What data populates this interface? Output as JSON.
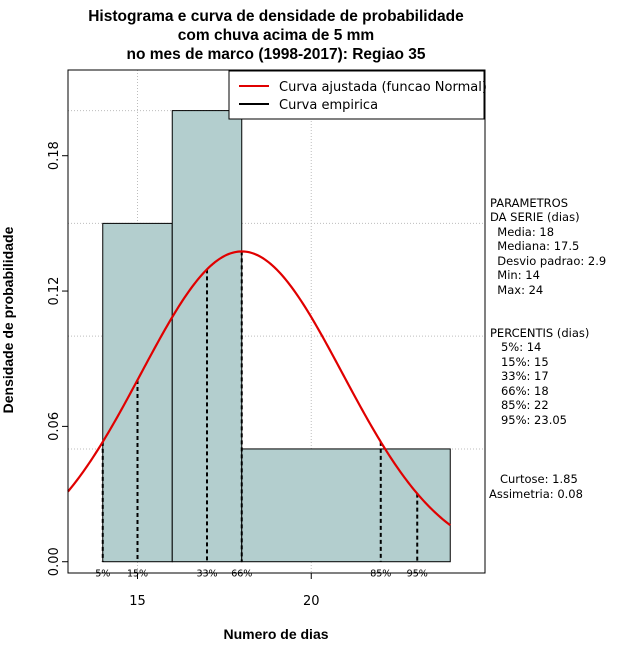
{
  "chart_data": {
    "type": "bar",
    "title_lines": [
      "Histograma e curva de densidade de probabilidade",
      "com chuva acima de 5 mm",
      "no mes de marco (1998-2017): Regiao 35"
    ],
    "xlabel": "Numero de dias",
    "ylabel": "Densidade de probabilidade",
    "xlim": [
      13.0,
      25.0
    ],
    "ylim": [
      -0.005,
      0.218
    ],
    "x_ticks": [
      15,
      20
    ],
    "x_tick_labels": [
      "15",
      "20"
    ],
    "y_ticks": [
      0.0,
      0.06,
      0.12,
      0.18
    ],
    "y_tick_labels": [
      "0.00",
      "0.06",
      "0.12",
      "0.18"
    ],
    "bins": [
      {
        "start": 14,
        "end": 16,
        "density": 0.15
      },
      {
        "start": 16,
        "end": 18,
        "density": 0.2
      },
      {
        "start": 18,
        "end": 24,
        "density": 0.05
      }
    ],
    "normal_fit": {
      "mean": 18.0,
      "sd": 2.9
    },
    "percentile_lines": [
      {
        "x": 14,
        "label": "5%"
      },
      {
        "x": 15,
        "label": "15%"
      },
      {
        "x": 17,
        "label": "33%"
      },
      {
        "x": 18,
        "label": "66%"
      },
      {
        "x": 22,
        "label": "85%"
      },
      {
        "x": 23.05,
        "label": "95%"
      }
    ],
    "grid_vertical": [
      15,
      20
    ],
    "grid_horizontal": [
      0.05,
      0.1,
      0.15,
      0.2
    ],
    "legend_position": "top-right",
    "legend": [
      {
        "label": "Curva ajustada (funcao Normal)",
        "color": "#e00000"
      },
      {
        "label": "Curva empirica",
        "color": "#000000"
      }
    ],
    "colors": {
      "bar_fill": "#b3cece",
      "curve": "#e00000",
      "grid": "#bdbdbd"
    }
  },
  "side_panel": {
    "params_lines": [
      "PARAMETROS",
      "DA SERIE (dias)",
      "  Media: 18",
      "  Mediana: 17.5",
      "  Desvio padrao: 2.9",
      "  Min: 14",
      "  Max: 24"
    ],
    "percentis_lines": [
      "PERCENTIS (dias)",
      "   5%: 14",
      "   15%: 15",
      "   33%: 17",
      "   66%: 18",
      "   85%: 22",
      "   95%: 23.05"
    ],
    "stats_lines": [
      "   Curtose: 1.85",
      "Assimetria: 0.08"
    ]
  }
}
